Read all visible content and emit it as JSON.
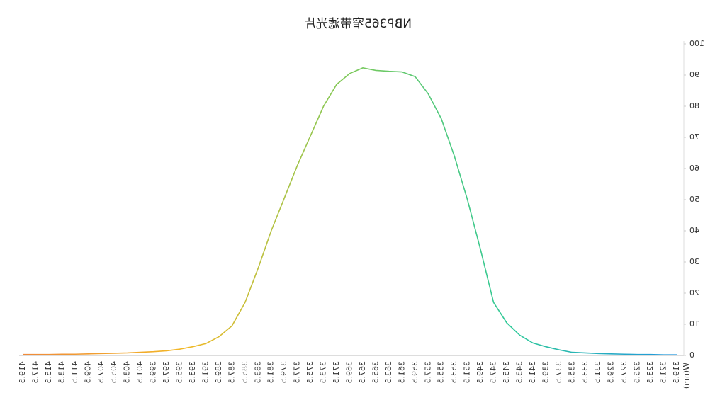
{
  "chart_data": {
    "type": "line",
    "title": "NBP365窄带滤光片",
    "x_label": "W(nm)",
    "categories": [
      "319.5",
      "321.5",
      "323.5",
      "325.5",
      "327.5",
      "329.5",
      "331.5",
      "333.5",
      "335.5",
      "337.5",
      "339.5",
      "341.5",
      "343.5",
      "345.5",
      "347.5",
      "349.5",
      "351.5",
      "353.5",
      "355.5",
      "357.5",
      "359.5",
      "361.5",
      "363.5",
      "365.5",
      "367.5",
      "369.5",
      "371.5",
      "373.5",
      "375.5",
      "377.5",
      "379.5",
      "381.5",
      "383.5",
      "385.5",
      "387.5",
      "389.5",
      "391.5",
      "393.5",
      "395.5",
      "397.5",
      "399.5",
      "401.5",
      "403.5",
      "405.5",
      "407.5",
      "409.5",
      "411.5",
      "413.5",
      "415.5",
      "417.5",
      "419.5"
    ],
    "values": [
      0.2,
      0.2,
      0.3,
      0.3,
      0.4,
      0.5,
      0.6,
      0.8,
      1.0,
      1.8,
      2.8,
      4.0,
      6.5,
      10.5,
      17,
      34,
      50,
      64,
      76,
      84,
      89.5,
      91,
      91.2,
      91.5,
      92.3,
      90.5,
      87,
      80,
      70.5,
      61,
      50.5,
      40,
      28,
      17,
      9.5,
      6,
      3.8,
      2.8,
      2.0,
      1.5,
      1.2,
      1.0,
      0.8,
      0.7,
      0.6,
      0.5,
      0.4,
      0.4,
      0.3,
      0.3,
      0.3
    ],
    "colors": [
      "#2196e0",
      "#2ec99a",
      "#7cc95a",
      "#f2b825",
      "#f08a3a"
    ],
    "ylim": [
      0,
      100
    ],
    "yticks": [
      0,
      10,
      20,
      30,
      40,
      50,
      60,
      70,
      80,
      90,
      100
    ],
    "grid": false
  }
}
